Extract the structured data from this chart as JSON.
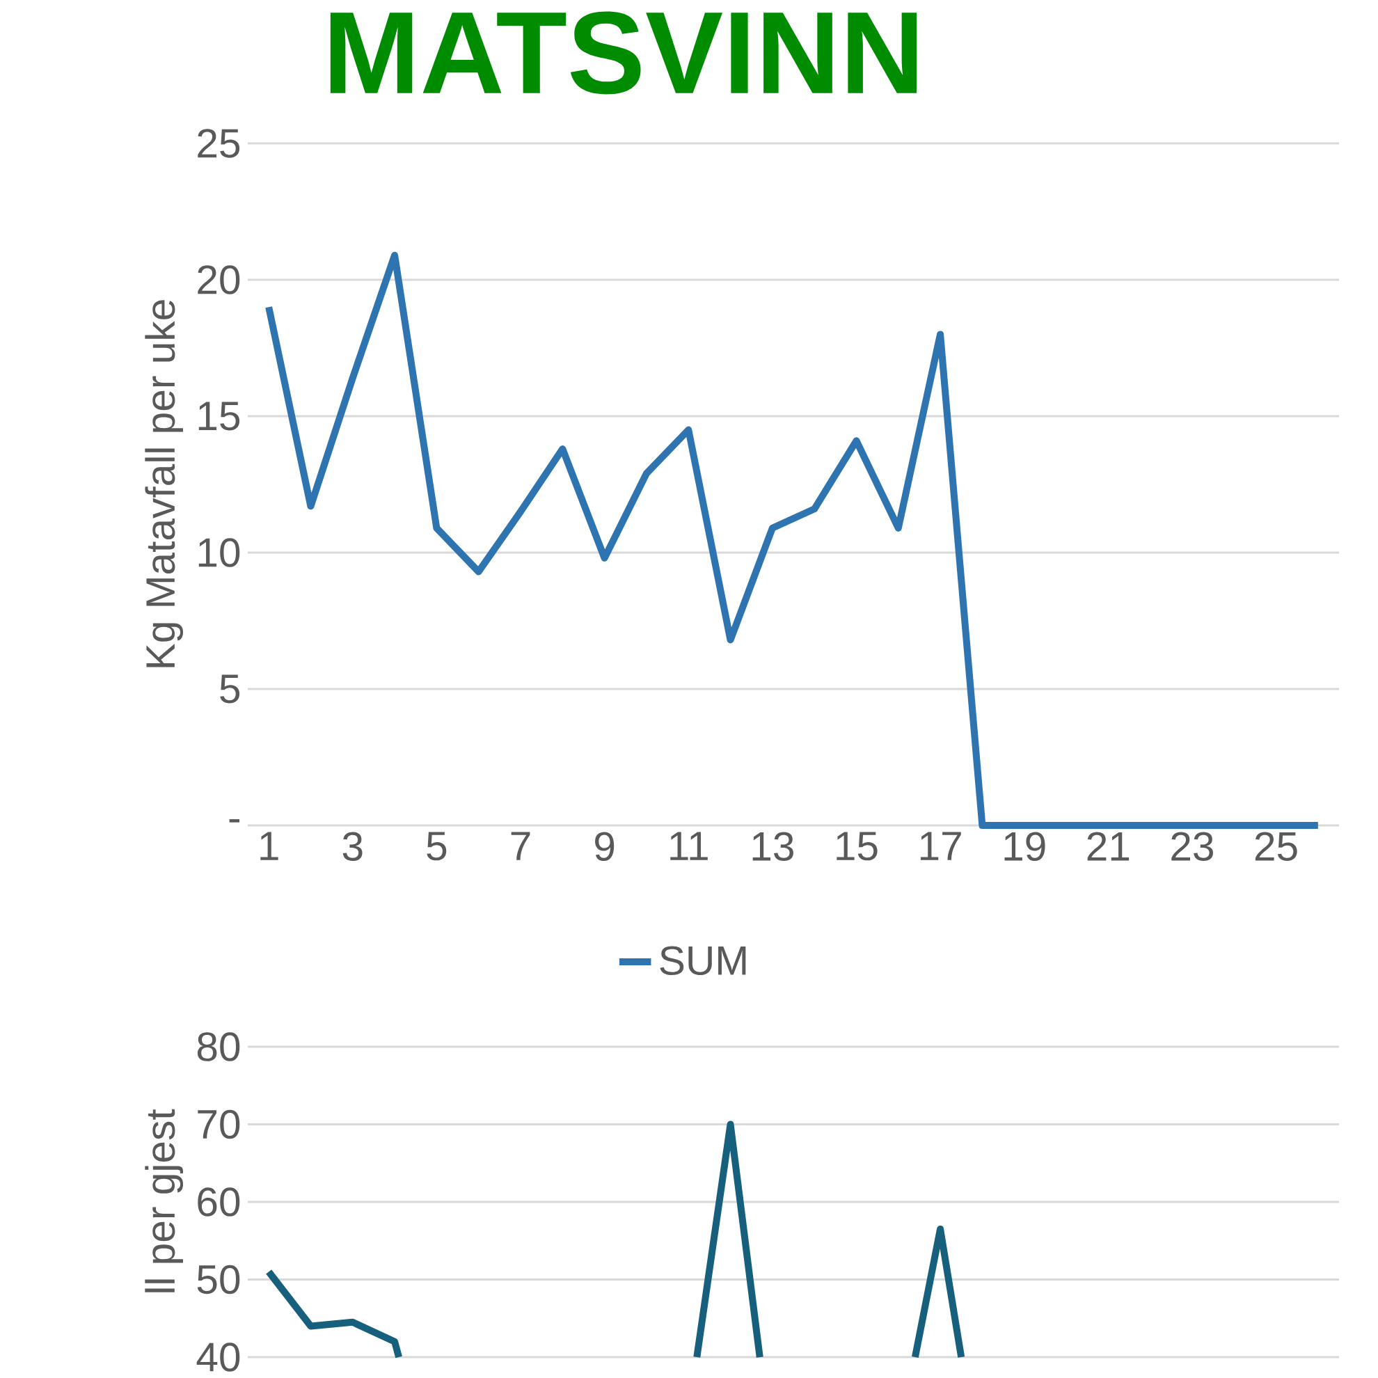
{
  "chart_data": [
    {
      "type": "line",
      "title": "MATSVINN",
      "ylabel": "Kg Matavfall per uke",
      "x": [
        1,
        2,
        3,
        4,
        5,
        6,
        7,
        8,
        9,
        10,
        11,
        12,
        13,
        14,
        15,
        16,
        17,
        18,
        19,
        20,
        21,
        22,
        23,
        24,
        25,
        26
      ],
      "series": [
        {
          "name": "SUM",
          "color": "#2e74b0",
          "values": [
            19.0,
            11.7,
            16.4,
            20.9,
            10.9,
            9.3,
            11.5,
            13.8,
            9.8,
            12.9,
            14.5,
            6.8,
            10.9,
            11.6,
            14.1,
            10.9,
            18.0,
            0,
            0,
            0,
            0,
            0,
            0,
            0,
            0,
            0
          ]
        }
      ],
      "xlim": [
        0.5,
        26.5
      ],
      "xticks": [
        1,
        3,
        5,
        7,
        9,
        11,
        13,
        15,
        17,
        19,
        21,
        23,
        25
      ],
      "ylim": [
        0,
        25
      ],
      "yticks": [
        {
          "value": 0,
          "label": "-"
        },
        5,
        10,
        15,
        20,
        25
      ],
      "grid": "y",
      "legend": "bottom"
    },
    {
      "type": "line",
      "ylabel": "ll per gjest",
      "x": [
        1,
        2,
        3,
        4,
        4.1,
        8,
        11.2,
        12,
        12.7,
        14,
        16.4,
        17,
        17.5
      ],
      "series": [
        {
          "color": "#17607d",
          "values": [
            51,
            44,
            44.5,
            42,
            40,
            null,
            40,
            70,
            40,
            null,
            40,
            56.5,
            40
          ]
        }
      ],
      "xlim": [
        0.5,
        26.5
      ],
      "ylim": [
        40,
        80
      ],
      "yticks": [
        40,
        50,
        60,
        70,
        80
      ],
      "grid": "y",
      "tick_labels": "y"
    }
  ]
}
